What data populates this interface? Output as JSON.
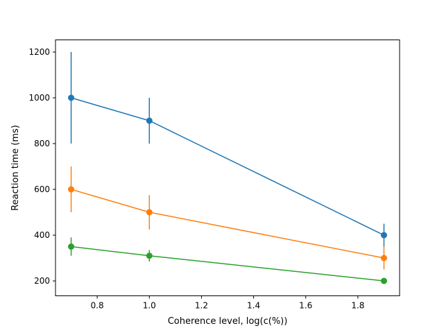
{
  "chart_data": {
    "type": "line",
    "title": "",
    "xlabel": "Coherence level, log(c(%))",
    "ylabel": "Reaction time (ms)",
    "xlim": [
      0.64,
      1.96
    ],
    "ylim": [
      135,
      1253
    ],
    "xticks": [
      0.8,
      1.0,
      1.2,
      1.4,
      1.6,
      1.8
    ],
    "xtick_labels": [
      "0.8",
      "1.0",
      "1.2",
      "1.4",
      "1.6",
      "1.8"
    ],
    "yticks": [
      200,
      400,
      600,
      800,
      1000,
      1200
    ],
    "ytick_labels": [
      "200",
      "400",
      "600",
      "800",
      "1000",
      "1200"
    ],
    "grid": false,
    "legend": "none",
    "x": [
      0.7,
      1.0,
      1.9
    ],
    "series": [
      {
        "color": "#1f77b4",
        "values": [
          1000,
          900,
          400
        ],
        "yerr": [
          200,
          100,
          50
        ]
      },
      {
        "color": "#ff7f0e",
        "values": [
          600,
          500,
          300
        ],
        "yerr": [
          100,
          75,
          50
        ]
      },
      {
        "color": "#2ca02c",
        "values": [
          350,
          310,
          200
        ],
        "yerr": [
          40,
          25,
          10
        ]
      }
    ]
  }
}
